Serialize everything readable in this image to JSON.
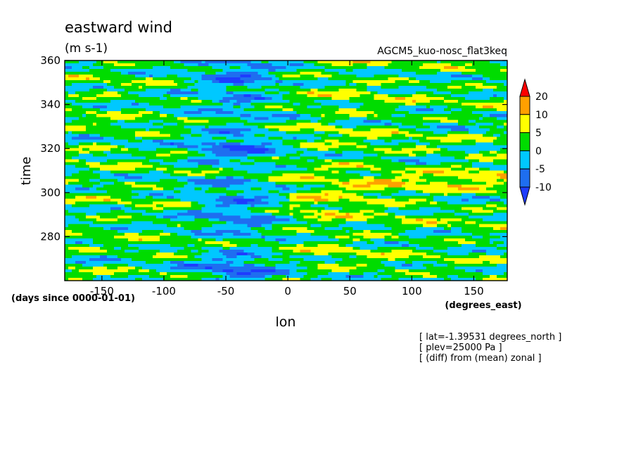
{
  "chart_data": {
    "type": "heatmap",
    "title": "eastward wind",
    "subtitle": "(m s-1)",
    "experiment_label": "AGCM5_kuo-nosc_flat3keq",
    "xlabel": "lon",
    "xunits": "(degrees_east)",
    "ylabel": "time",
    "yunits": "(days since 0000-01-01)",
    "xlim": [
      -180,
      177
    ],
    "ylim": [
      260,
      360
    ],
    "xticks": [
      -150,
      -100,
      -50,
      0,
      50,
      100,
      150
    ],
    "xtick_labels": [
      "-150",
      "-100",
      "-50",
      "0",
      "50",
      "100",
      "150"
    ],
    "yticks": [
      280,
      300,
      320,
      340,
      360
    ],
    "ytick_labels": [
      "280",
      "300",
      "320",
      "340",
      "360"
    ],
    "colorbar": {
      "levels": [
        -10,
        -5,
        0,
        5,
        10,
        20
      ],
      "level_labels": [
        "-10",
        "-5",
        "0",
        "5",
        "10",
        "20"
      ],
      "colors": [
        "#1e6ef0",
        "#00c8ff",
        "#00dc00",
        "#ffff00",
        "#ffa000",
        "#ff0000"
      ],
      "under_color": "#1e3cff",
      "placement": "right",
      "extend": "both"
    },
    "notes": [
      "[ lat=-1.39531 degrees_north ]",
      "[ plev=25000 Pa ]",
      "[ (diff) from (mean) zonal ]"
    ]
  }
}
